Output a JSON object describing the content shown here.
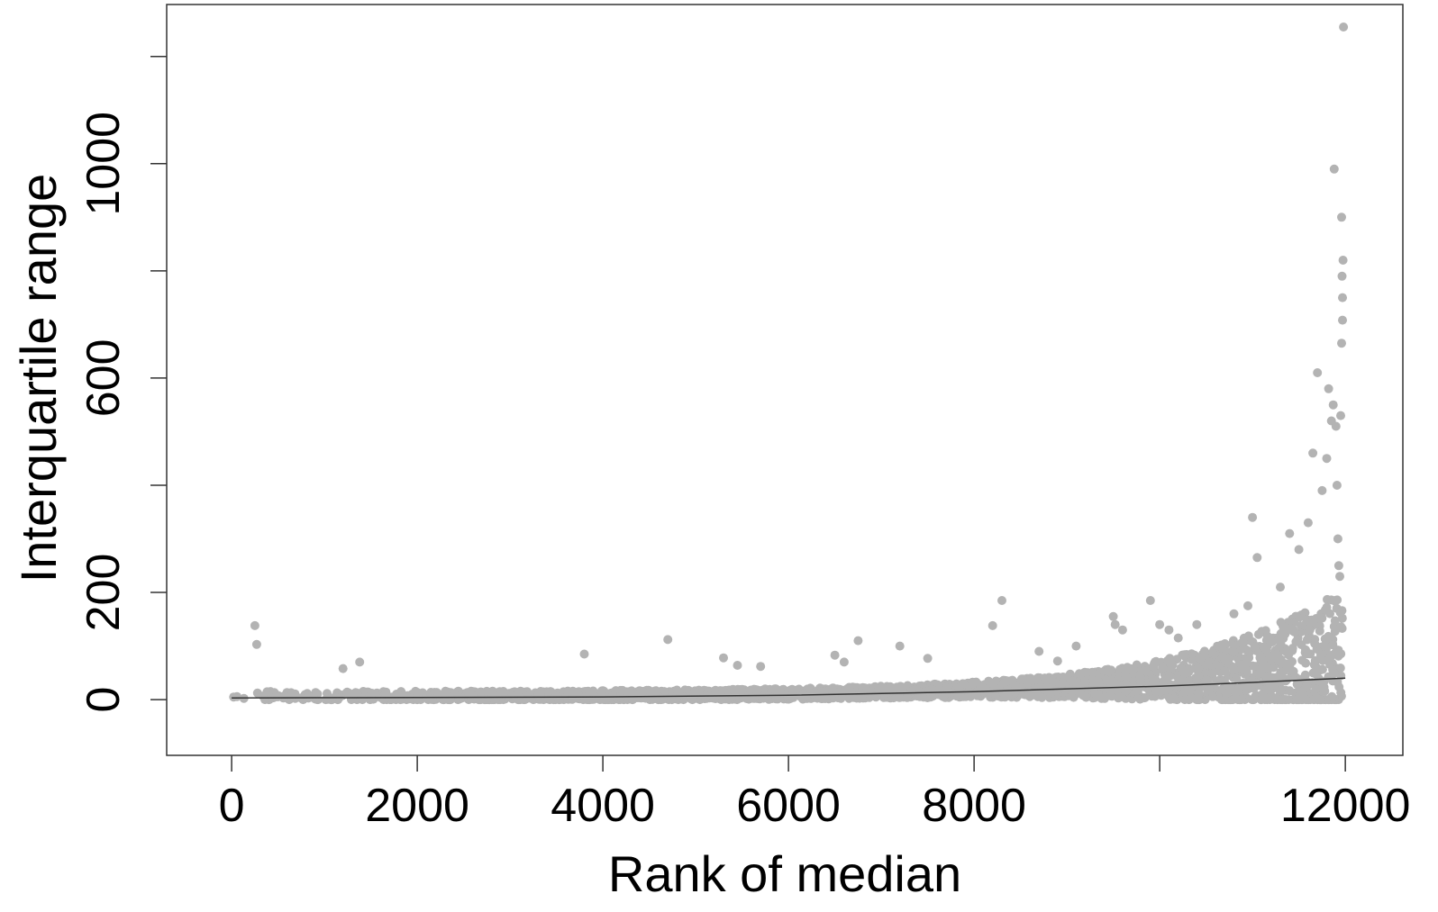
{
  "chart_data": {
    "type": "scatter",
    "title": "",
    "xlabel": "Rank of median",
    "ylabel": "Interquartile range",
    "xlim": [
      -700,
      12620
    ],
    "ylim": [
      -104,
      1297
    ],
    "x_ticks": [
      0,
      2000,
      4000,
      6000,
      8000,
      10000,
      12000
    ],
    "x_tick_labels": [
      "0",
      "2000",
      "4000",
      "6000",
      "8000",
      "",
      "12000"
    ],
    "y_ticks": [
      0,
      200,
      400,
      600,
      800,
      1000,
      1200
    ],
    "y_tick_labels": [
      "0",
      "200",
      "",
      "600",
      "",
      "1000",
      ""
    ],
    "grid": false,
    "point_color": "#b3b3b3",
    "line_color": "#333333",
    "trend_line": {
      "x": [
        0,
        2000,
        4000,
        6000,
        8000,
        10000,
        11000,
        12000
      ],
      "y": [
        3,
        4,
        5,
        8,
        15,
        25,
        32,
        40
      ]
    },
    "points": {
      "x": [
        250,
        270,
        1200,
        1380,
        3800,
        4700,
        5300,
        5450,
        5700,
        6500,
        6600,
        6750,
        7200,
        7500,
        8200,
        8300,
        8700,
        8900,
        9100,
        9500,
        9520,
        9600,
        9900,
        10000,
        10100,
        10200,
        10400,
        10800,
        10950,
        11000,
        11050,
        11300,
        11400,
        11500,
        11600,
        11650,
        11700,
        11750,
        11800,
        11820,
        11850,
        11870,
        11880,
        11900,
        11910,
        11920,
        11930,
        11940,
        11950,
        11960,
        11960,
        11965,
        11970,
        11970,
        11975,
        11980
      ],
      "y": [
        138,
        103,
        58,
        70,
        85,
        112,
        78,
        64,
        62,
        83,
        70,
        110,
        100,
        77,
        138,
        185,
        90,
        72,
        100,
        155,
        140,
        130,
        185,
        140,
        130,
        115,
        140,
        160,
        175,
        340,
        265,
        210,
        310,
        280,
        330,
        460,
        610,
        390,
        450,
        580,
        520,
        550,
        990,
        510,
        400,
        300,
        250,
        230,
        530,
        900,
        665,
        790,
        750,
        708,
        820,
        1255
      ]
    },
    "dense_band_note": ""
  }
}
